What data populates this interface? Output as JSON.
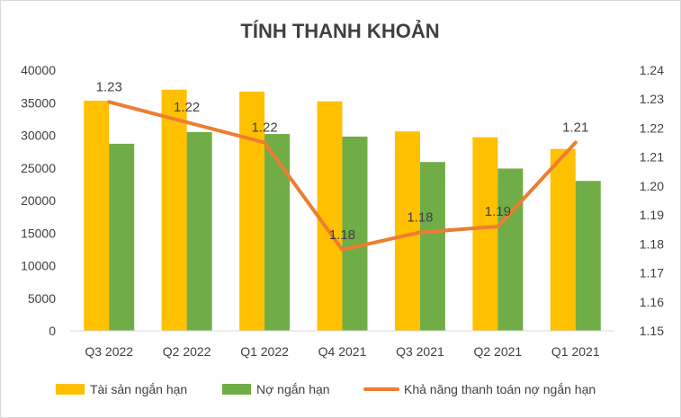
{
  "chart_data": {
    "type": "bar+line",
    "title": "TÍNH THANH KHOẢN",
    "categories": [
      "Q3 2022",
      "Q2 2022",
      "Q1 2022",
      "Q4 2021",
      "Q3 2021",
      "Q2 2021",
      "Q1 2021"
    ],
    "series": [
      {
        "name": "Tài sản ngắn hạn",
        "type": "bar",
        "axis": "left",
        "color": "#FFC000",
        "values": [
          35300,
          37000,
          36700,
          35200,
          30600,
          29700,
          27900
        ]
      },
      {
        "name": "Nợ ngắn hạn",
        "type": "bar",
        "axis": "left",
        "color": "#70AD47",
        "values": [
          28700,
          30500,
          30200,
          29800,
          25900,
          24900,
          23000
        ]
      },
      {
        "name": "Khả năng thanh toán nợ ngắn hạn",
        "type": "line",
        "axis": "right",
        "color": "#ED7D31",
        "values": [
          1.229,
          1.222,
          1.215,
          1.178,
          1.184,
          1.186,
          1.215
        ],
        "labels": [
          "1.23",
          "1.22",
          "1.22",
          "1.18",
          "1.18",
          "1.19",
          "1.21"
        ]
      }
    ],
    "y_left": {
      "min": 0,
      "max": 40000,
      "step": 5000,
      "ticks": [
        "0",
        "5000",
        "10000",
        "15000",
        "20000",
        "25000",
        "30000",
        "35000",
        "40000"
      ]
    },
    "y_right": {
      "min": 1.15,
      "max": 1.24,
      "step": 0.01,
      "ticks": [
        "1.15",
        "1.16",
        "1.17",
        "1.18",
        "1.19",
        "1.20",
        "1.21",
        "1.22",
        "1.23",
        "1.24"
      ]
    },
    "grid": false,
    "legend_position": "bottom"
  }
}
